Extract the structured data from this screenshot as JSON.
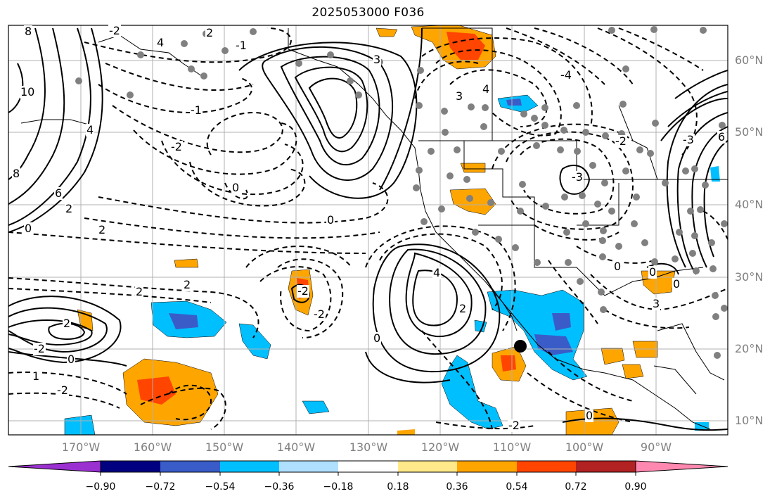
{
  "title": "2025053000 F036",
  "lat_labels": [
    "60°N",
    "50°N",
    "40°N",
    "30°N",
    "20°N",
    "10°N"
  ],
  "lon_labels": [
    "170°W",
    "160°W",
    "150°W",
    "140°W",
    "130°W",
    "120°W",
    "110°W",
    "100°W",
    "90°W"
  ],
  "colorbar": {
    "labels": [
      "−0.90",
      "−0.72",
      "−0.54",
      "−0.36",
      "−0.18",
      "0.18",
      "0.36",
      "0.54",
      "0.72",
      "0.90"
    ],
    "colors": [
      "#9b30d0",
      "#000080",
      "#3a5cc8",
      "#00bfff",
      "#b0e0ff",
      "#ffffff",
      "#ffe98a",
      "#ffa500",
      "#ff4500",
      "#b22222",
      "#ff88b0"
    ]
  },
  "contour_labels": [
    "8",
    "-2",
    "4",
    "2",
    "-1",
    "3",
    "10",
    "4",
    "8",
    "6",
    "2",
    "0",
    "2",
    "-2",
    "0",
    "-1",
    "2",
    "2",
    "0",
    "-2",
    "4",
    "4",
    "3",
    "-3",
    "-4",
    "-2",
    "3",
    "-2",
    "0",
    "2",
    "-2",
    "0",
    "1",
    "-2",
    "2",
    "-2",
    "0",
    "0",
    "0",
    "0",
    "-3",
    "6"
  ],
  "marker": "station-marker"
}
